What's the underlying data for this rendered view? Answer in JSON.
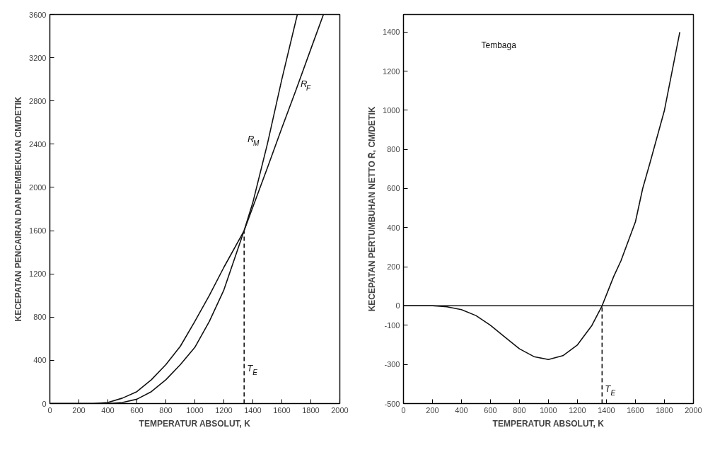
{
  "chart_data": [
    {
      "type": "line",
      "xlabel": "TEMPERATUR ABSOLUT, K",
      "ylabel": "KECEPATAN PENCAIRAN DAN PEMBEKUAN CM/DETIK",
      "xlim": [
        0,
        2000
      ],
      "ylim": [
        0,
        3600
      ],
      "xticks": [
        0,
        200,
        400,
        600,
        800,
        1000,
        1200,
        1400,
        1600,
        1800,
        2000
      ],
      "yticks": [
        0,
        400,
        800,
        1200,
        1600,
        2000,
        2400,
        2800,
        3200,
        3600
      ],
      "grid": false,
      "marker": "none",
      "series": [
        {
          "name": "R$_{M}$",
          "color": "#111111",
          "x": [
            0,
            300,
            400,
            500,
            600,
            700,
            800,
            900,
            1000,
            1100,
            1200,
            1340,
            1400,
            1500,
            1600,
            1707
          ],
          "values": [
            0,
            0,
            0,
            10,
            40,
            110,
            220,
            360,
            520,
            760,
            1050,
            1600,
            1860,
            2400,
            3000,
            3600
          ]
        },
        {
          "name": "R$_{F}$",
          "color": "#111111",
          "x": [
            0,
            300,
            400,
            500,
            600,
            700,
            800,
            900,
            1000,
            1100,
            1200,
            1340,
            1500,
            1600,
            1700,
            1800,
            1887
          ],
          "values": [
            0,
            0,
            10,
            50,
            110,
            220,
            360,
            530,
            760,
            1000,
            1260,
            1600,
            2180,
            2550,
            2910,
            3280,
            3600
          ]
        },
        {
          "color": "#111111",
          "line_style": "dashed",
          "x": [
            1340,
            1340
          ],
          "values": [
            0,
            1600
          ]
        }
      ],
      "annotations": [
        {
          "text": "T$_{E}$",
          "x": 1340,
          "y": 280
        }
      ]
    },
    {
      "type": "line",
      "xlabel": "TEMPERATUR ABSOLUT, K",
      "ylabel": "KECEPATAN PERTUMBUHAN NETTO R̄, CM/DETIK",
      "xlim": [
        0,
        2000
      ],
      "ylim": [
        -500,
        1490
      ],
      "xticks": [
        0,
        200,
        400,
        600,
        800,
        1000,
        1200,
        1400,
        1600,
        1800,
        2000
      ],
      "yticks": [
        -500,
        -300,
        -100,
        0,
        200,
        400,
        600,
        800,
        1000,
        1200,
        1400
      ],
      "grid": false,
      "marker": "none",
      "series": [
        {
          "color": "#111111",
          "x": [
            0,
            200,
            300,
            400,
            500,
            600,
            700,
            800,
            900,
            1000,
            1100,
            1200,
            1300,
            1370,
            1450,
            1500,
            1600,
            1650,
            1700,
            1800,
            1906
          ],
          "values": [
            0,
            0,
            -5,
            -20,
            -50,
            -100,
            -160,
            -220,
            -260,
            -275,
            -255,
            -200,
            -100,
            0,
            150,
            230,
            430,
            600,
            730,
            1000,
            1400
          ]
        },
        {
          "color": "#111111",
          "line_style": "dashed",
          "x": [
            1370,
            1370
          ],
          "values": [
            -500,
            0
          ]
        }
      ],
      "ref_lines": [
        {
          "axis": "y",
          "value": 0,
          "color": "#111111",
          "line_style": "solid"
        }
      ],
      "annotations": [
        "Tembaga",
        {
          "text": "T$_{E}$",
          "x": 1370,
          "y": -450
        }
      ]
    }
  ]
}
